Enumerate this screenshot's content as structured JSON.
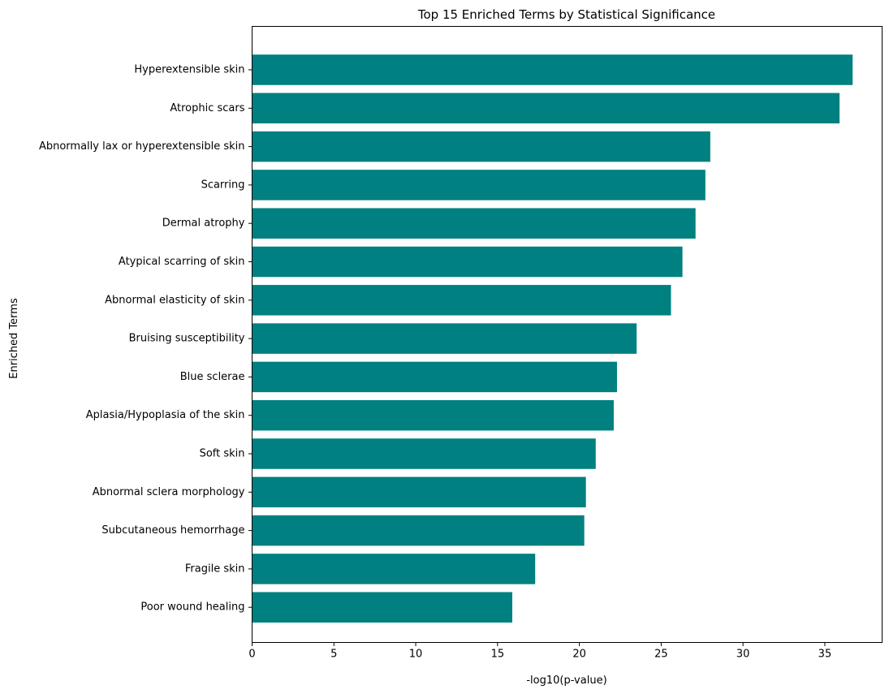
{
  "chart_data": {
    "type": "bar",
    "orientation": "horizontal",
    "title": "Top 15 Enriched Terms by Statistical Significance",
    "xlabel": "-log10(p-value)",
    "ylabel": "Enriched Terms",
    "xlim": [
      0,
      38.5
    ],
    "xticks": [
      0,
      5,
      10,
      15,
      20,
      25,
      30,
      35
    ],
    "grid": false,
    "bar_color": "#008080",
    "categories": [
      "Hyperextensible skin",
      "Atrophic scars",
      "Abnormally lax or hyperextensible skin",
      "Scarring",
      "Dermal atrophy",
      "Atypical scarring of skin",
      "Abnormal elasticity of skin",
      "Bruising susceptibility",
      "Blue sclerae",
      "Aplasia/Hypoplasia of the skin",
      "Soft skin",
      "Abnormal sclera morphology",
      "Subcutaneous hemorrhage",
      "Fragile skin",
      "Poor wound healing"
    ],
    "values": [
      36.7,
      35.9,
      28.0,
      27.7,
      27.1,
      26.3,
      25.6,
      23.5,
      22.3,
      22.1,
      21.0,
      20.4,
      20.3,
      17.3,
      15.9
    ]
  }
}
